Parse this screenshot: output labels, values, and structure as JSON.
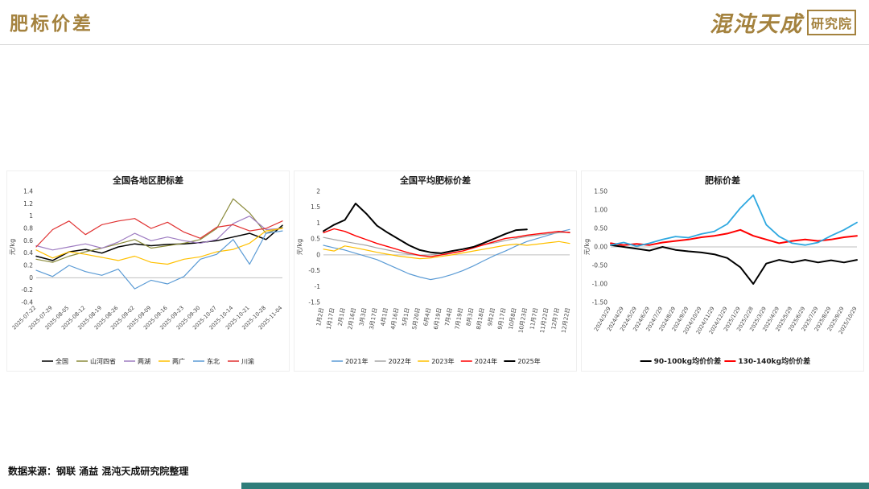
{
  "header": {
    "title": "肥标价差",
    "accent_color": "#A4823E",
    "logo": {
      "brand": "混沌天成",
      "suffix": "研究院"
    }
  },
  "footer": {
    "source": "数据来源：钢联 涌益 混沌天成研究院整理",
    "bottom_bar_color": "#2E7D7A"
  },
  "chart_data": [
    {
      "type": "line",
      "title": "全国各地区肥标差",
      "ylabel": "元/kg",
      "ylim": [
        -0.4,
        1.4
      ],
      "yticks": [
        1.4,
        1.2,
        1.0,
        0.8,
        0.6,
        0.4,
        0.2,
        0.0,
        -0.2,
        -0.4
      ],
      "ytick_labels": [
        "1.4",
        "1.2",
        "1",
        "0.8",
        "0.6",
        "0.4",
        "0.2",
        "0",
        "-0.2",
        "-0.4"
      ],
      "grid": false,
      "legend_position": "bottom",
      "xlabels": [
        "2025-07-22",
        "2025-07-29",
        "2025-08-05",
        "2025-08-12",
        "2025-08-19",
        "2025-08-26",
        "2025-09-02",
        "2025-09-09",
        "2025-09-16",
        "2025-09-23",
        "2025-09-30",
        "2025-10-07",
        "2025-10-14",
        "2025-10-21",
        "2025-10-28",
        "2025-11-04"
      ],
      "series": [
        {
          "name": "全国",
          "color": "#000000",
          "lw": 1.5,
          "values": [
            0.35,
            0.28,
            0.42,
            0.46,
            0.4,
            0.5,
            0.55,
            0.52,
            0.54,
            0.55,
            0.57,
            0.6,
            0.66,
            0.72,
            0.62,
            0.85
          ]
        },
        {
          "name": "山河四省",
          "color": "#8A8A3A",
          "lw": 1.2,
          "values": [
            0.3,
            0.25,
            0.35,
            0.42,
            0.48,
            0.55,
            0.62,
            0.48,
            0.52,
            0.56,
            0.62,
            0.8,
            1.28,
            1.05,
            0.72,
            0.82
          ]
        },
        {
          "name": "两湖",
          "color": "#9E7CC1",
          "lw": 1.2,
          "values": [
            0.52,
            0.45,
            0.5,
            0.55,
            0.48,
            0.58,
            0.72,
            0.6,
            0.66,
            0.6,
            0.56,
            0.62,
            0.88,
            1.0,
            0.78,
            0.8
          ]
        },
        {
          "name": "两广",
          "color": "#FFC000",
          "lw": 1.2,
          "values": [
            0.45,
            0.32,
            0.42,
            0.38,
            0.33,
            0.28,
            0.35,
            0.25,
            0.22,
            0.3,
            0.34,
            0.42,
            0.46,
            0.56,
            0.76,
            0.8
          ]
        },
        {
          "name": "东北",
          "color": "#5B9BD5",
          "lw": 1.2,
          "values": [
            0.12,
            0.02,
            0.2,
            0.1,
            0.04,
            0.14,
            -0.18,
            -0.04,
            -0.1,
            0.02,
            0.3,
            0.38,
            0.62,
            0.22,
            0.72,
            0.76
          ]
        },
        {
          "name": "川渝",
          "color": "#E03030",
          "lw": 1.2,
          "values": [
            0.5,
            0.78,
            0.92,
            0.7,
            0.86,
            0.92,
            0.96,
            0.8,
            0.9,
            0.74,
            0.64,
            0.82,
            0.86,
            0.76,
            0.8,
            0.92
          ]
        }
      ]
    },
    {
      "type": "line",
      "title": "全国平均肥标价差",
      "ylabel": "元/kg",
      "ylim": [
        -1.5,
        2
      ],
      "yticks": [
        2,
        1.5,
        1,
        0.5,
        0,
        -0.5,
        -1,
        -1.5
      ],
      "ytick_labels": [
        "2",
        "1.5",
        "1",
        "0.5",
        "0",
        "-0.5",
        "-1",
        "-1.5"
      ],
      "grid": false,
      "legend_position": "bottom",
      "xlabels": [
        "1月2日",
        "1月17日",
        "2月1日",
        "2月16日",
        "3月3日",
        "3月17日",
        "4月1日",
        "4月16日",
        "5月1日",
        "5月20日",
        "6月4日",
        "6月19日",
        "7月4日",
        "7月19日",
        "8月3日",
        "8月18日",
        "9月2日",
        "9月17日",
        "10月8日",
        "10月23日",
        "11月7日",
        "11月22日",
        "12月7日",
        "12月22日"
      ],
      "series": [
        {
          "name": "2021年",
          "color": "#5B9BD5",
          "lw": 1.2,
          "values": [
            0.3,
            0.22,
            0.15,
            0.05,
            -0.05,
            -0.15,
            -0.3,
            -0.45,
            -0.6,
            -0.7,
            -0.78,
            -0.72,
            -0.62,
            -0.5,
            -0.35,
            -0.18,
            -0.02,
            0.12,
            0.28,
            0.42,
            0.52,
            0.62,
            0.72,
            0.8
          ]
        },
        {
          "name": "2022年",
          "color": "#A5A5A5",
          "lw": 1.2,
          "values": [
            0.55,
            0.48,
            0.42,
            0.36,
            0.3,
            0.22,
            0.15,
            0.08,
            0.02,
            -0.02,
            0.0,
            0.05,
            0.12,
            0.18,
            0.25,
            0.32,
            0.38,
            0.45,
            0.52,
            0.58,
            0.62,
            0.66,
            0.7,
            0.72
          ]
        },
        {
          "name": "2023年",
          "color": "#FFC000",
          "lw": 1.2,
          "values": [
            0.18,
            0.12,
            0.28,
            0.22,
            0.15,
            0.08,
            0.02,
            -0.04,
            -0.08,
            -0.12,
            -0.1,
            -0.05,
            0.0,
            0.06,
            0.12,
            0.18,
            0.24,
            0.3,
            0.34,
            0.3,
            0.34,
            0.38,
            0.42,
            0.36
          ]
        },
        {
          "name": "2024年",
          "color": "#FF0000",
          "lw": 1.4,
          "values": [
            0.7,
            0.82,
            0.74,
            0.6,
            0.48,
            0.36,
            0.26,
            0.16,
            0.06,
            -0.02,
            -0.06,
            0.0,
            0.06,
            0.12,
            0.22,
            0.32,
            0.42,
            0.52,
            0.56,
            0.62,
            0.66,
            0.7,
            0.74,
            0.7
          ]
        },
        {
          "name": "2025年",
          "color": "#000000",
          "lw": 2.0,
          "values": [
            0.75,
            0.95,
            1.1,
            1.62,
            1.3,
            0.92,
            0.7,
            0.5,
            0.3,
            0.15,
            0.08,
            0.05,
            0.12,
            0.18,
            0.25,
            0.38,
            0.52,
            0.66,
            0.78,
            0.8,
            null,
            null,
            null,
            null
          ]
        }
      ]
    },
    {
      "type": "line",
      "title": "肥标价差",
      "ylabel": "元/kg",
      "ylim": [
        -1.5,
        1.5
      ],
      "yticks": [
        1.5,
        1.0,
        0.5,
        0.0,
        -0.5,
        -1.0,
        -1.5
      ],
      "ytick_labels": [
        "1.50",
        "1.00",
        "0.50",
        "0.00",
        "-0.50",
        "-1.00",
        "-1.50"
      ],
      "grid": false,
      "legend_position": "bottom",
      "xlabels": [
        "2024/3/29",
        "2024/4/29",
        "2024/5/29",
        "2024/6/29",
        "2024/7/29",
        "2024/8/29",
        "2024/9/29",
        "2024/10/29",
        "2024/11/29",
        "2024/12/29",
        "2025/1/29",
        "2025/2/28",
        "2025/3/29",
        "2025/4/29",
        "2025/5/29",
        "2025/6/29",
        "2025/7/29",
        "2025/8/29",
        "2025/9/29",
        "2025/10/29"
      ],
      "series": [
        {
          "name": "90-100kg均价价差",
          "color": "#000000",
          "lw": 2.0,
          "values": [
            0.05,
            0.0,
            -0.05,
            -0.1,
            0.0,
            -0.08,
            -0.12,
            -0.15,
            -0.2,
            -0.3,
            -0.55,
            -1.0,
            -0.45,
            -0.35,
            -0.42,
            -0.35,
            -0.42,
            -0.36,
            -0.42,
            -0.35
          ]
        },
        {
          "name": "130-140kg均价价差",
          "color": "#FF0000",
          "lw": 2.0,
          "values": [
            0.1,
            0.05,
            0.08,
            0.05,
            0.12,
            0.16,
            0.2,
            0.26,
            0.3,
            0.36,
            0.46,
            0.3,
            0.2,
            0.1,
            0.16,
            0.2,
            0.16,
            0.2,
            0.26,
            0.3
          ]
        },
        {
          "name": "",
          "color": "#2EA8E0",
          "lw": 1.8,
          "values": [
            0.05,
            0.12,
            0.02,
            0.1,
            0.2,
            0.28,
            0.25,
            0.35,
            0.42,
            0.62,
            1.05,
            1.4,
            0.6,
            0.28,
            0.1,
            0.05,
            0.12,
            0.3,
            0.46,
            0.66
          ]
        }
      ]
    }
  ]
}
